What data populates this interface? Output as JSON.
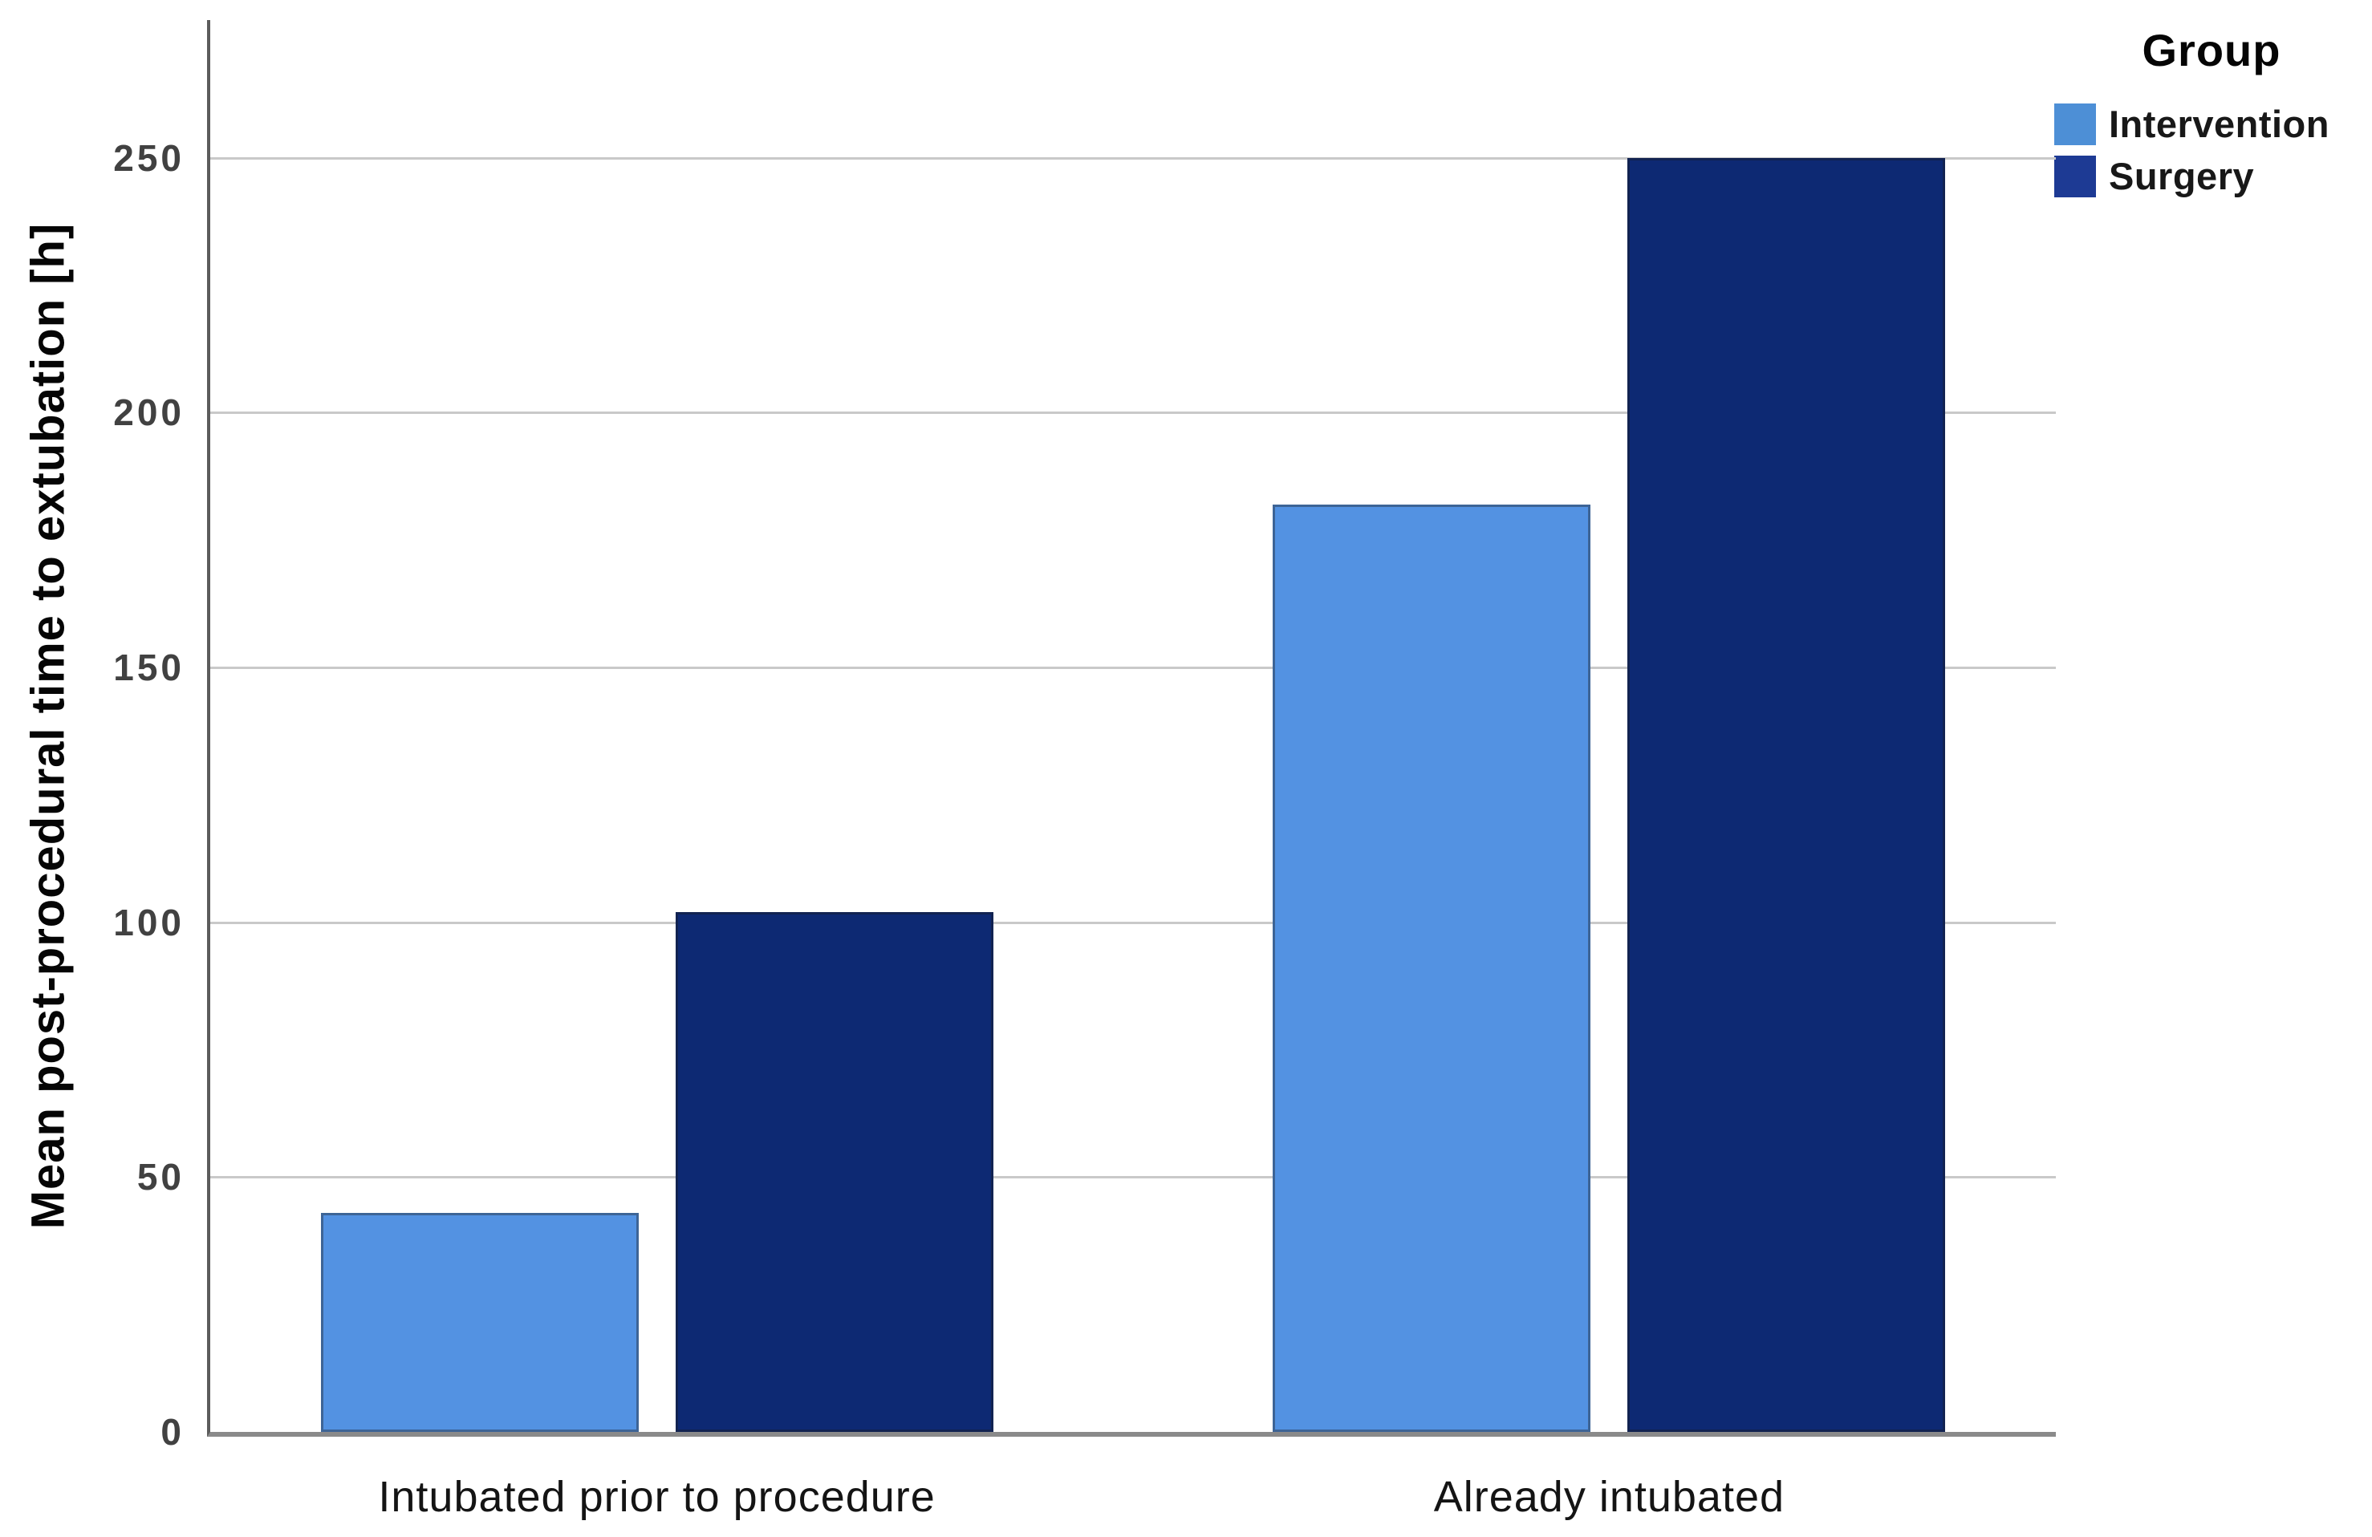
{
  "chart_data": {
    "type": "bar",
    "title": "",
    "categories": [
      "Intubated prior to procedure",
      "Already intubated"
    ],
    "series": [
      {
        "name": "Intervention",
        "color": "#5392e2",
        "legend_color": "#4d8fd6",
        "values": [
          43,
          182
        ]
      },
      {
        "name": "Surgery",
        "color": "#0d2973",
        "legend_color": "#1d3a94",
        "values": [
          102,
          250
        ]
      }
    ],
    "xlabel": "",
    "ylabel": "Mean post-procedural time to extubation [h]",
    "yticks": [
      0,
      50,
      100,
      150,
      200,
      250
    ],
    "ylim": [
      0,
      277
    ],
    "grid": true,
    "legend_title": "Group",
    "legend_position": "top-right",
    "colors": {
      "gridline": "#c9c9c9",
      "axis": "#6e6e6e",
      "tick_label": "#414141",
      "text": "#050505"
    }
  }
}
